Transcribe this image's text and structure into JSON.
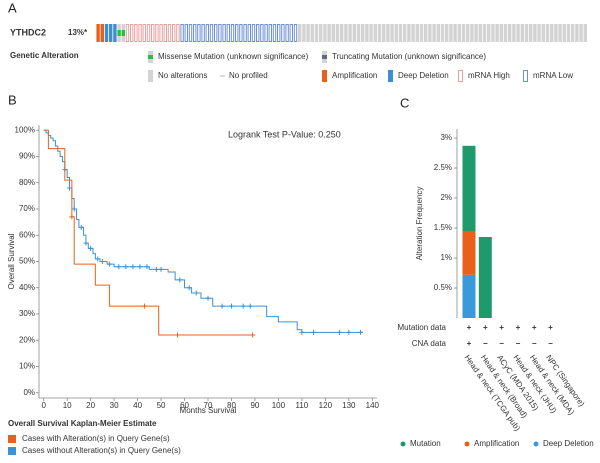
{
  "panel_labels": [
    "A",
    "B",
    "C"
  ],
  "oncoprint": {
    "gene": "YTHDC2",
    "frequency": "13%*",
    "legend_title": "Genetic Alteration",
    "legend": [
      {
        "label": "Missense Mutation (unknown significance)",
        "color": "#1fc33c"
      },
      {
        "label": "Truncating Mutation (unknown significance)",
        "color": "#5b6a82"
      },
      {
        "label": "No alterations",
        "color": "#d3d3d3"
      },
      {
        "label": "No profiled",
        "color": "#d3d3d3"
      },
      {
        "label": "Amplification",
        "color": "#e8601c"
      },
      {
        "label": "Deep Deletion",
        "color": "#3e8ed0"
      },
      {
        "label": "mRNA High",
        "color": "#e8a0a0"
      },
      {
        "label": "mRNA Low",
        "color": "#6d8fd8"
      }
    ],
    "samples": [
      {
        "alteration": "Amplification",
        "count": 2
      },
      {
        "alteration": "Deep Deletion",
        "count": 3
      },
      {
        "alteration": "Missense Mutation (unknown significance)",
        "count": 2
      },
      {
        "alteration": "mRNA High",
        "count": 13
      },
      {
        "alteration": "mRNA Low",
        "count": 28
      },
      {
        "alteration": "No alterations",
        "count": 69
      }
    ]
  },
  "chart_data": [
    {
      "type": "line",
      "title": "Overall Survival Kaplan-Meier Estimate",
      "annotation": "Logrank Test P-Value: 0.250",
      "x_label": "Months Survival",
      "y_label": "Overall Survival",
      "xlim": [
        -2,
        142
      ],
      "xticks": [
        0,
        10,
        20,
        30,
        40,
        50,
        60,
        70,
        80,
        90,
        100,
        110,
        120,
        130,
        140
      ],
      "ylim": [
        -2,
        102
      ],
      "yticks": [
        {
          "value": 0,
          "label": "0%"
        },
        {
          "value": 10,
          "label": "10%"
        },
        {
          "value": 20,
          "label": "20%"
        },
        {
          "value": 30,
          "label": "30%"
        },
        {
          "value": 40,
          "label": "40%"
        },
        {
          "value": 50,
          "label": "50%"
        },
        {
          "value": 60,
          "label": "60%"
        },
        {
          "value": 70,
          "label": "70%"
        },
        {
          "value": 80,
          "label": "80%"
        },
        {
          "value": 90,
          "label": "90%"
        },
        {
          "value": 100,
          "label": "100%"
        }
      ],
      "series": [
        {
          "name": "Cases with Alteration(s) in Query Gene(s)",
          "color": "#e8601c",
          "x": [
            0,
            2,
            2,
            9,
            9,
            12,
            12,
            13,
            13,
            22,
            22,
            28,
            28,
            49,
            49,
            89
          ],
          "values": [
            100,
            100,
            93,
            93,
            81,
            81,
            67,
            67,
            49,
            49,
            41,
            41,
            33,
            33,
            22,
            22
          ],
          "censored_x": [
            12,
            43,
            57,
            89
          ],
          "censored_values": [
            67,
            33,
            22,
            22
          ]
        },
        {
          "name": "Cases without Alteration(s) in Query Gene(s)",
          "color": "#3a92d6",
          "x": [
            0,
            1,
            1,
            2,
            2,
            3,
            3,
            4,
            4,
            5,
            5,
            6,
            6,
            7,
            7,
            8,
            8,
            9,
            9,
            10,
            10,
            11,
            11,
            12,
            12,
            13,
            13,
            14,
            14,
            15,
            15,
            17,
            17,
            18,
            18,
            19,
            19,
            21,
            21,
            22,
            22,
            24,
            24,
            27,
            27,
            30,
            30,
            45,
            45,
            53,
            53,
            56,
            56,
            60,
            60,
            63,
            63,
            67,
            67,
            72,
            72,
            95,
            95,
            100,
            100,
            108,
            108,
            110,
            110,
            136
          ],
          "values": [
            100,
            100,
            99,
            99,
            98,
            98,
            97,
            97,
            96,
            96,
            94,
            94,
            92,
            92,
            90,
            90,
            88,
            88,
            85,
            85,
            82,
            82,
            78,
            78,
            74,
            74,
            70,
            70,
            66,
            66,
            63,
            63,
            60,
            60,
            57,
            57,
            55,
            55,
            53,
            53,
            51,
            51,
            50,
            50,
            49,
            49,
            48,
            48,
            47,
            47,
            46,
            46,
            43,
            43,
            40,
            40,
            38,
            38,
            36,
            36,
            33,
            33,
            29,
            29,
            27,
            27,
            24,
            24,
            23,
            23
          ],
          "censored_x": [
            9,
            11,
            13,
            16,
            18,
            20,
            23,
            25,
            28,
            32,
            35,
            38,
            41,
            44,
            48,
            50,
            58,
            62,
            65,
            70,
            76,
            80,
            85,
            88,
            110,
            115,
            126,
            130,
            135
          ],
          "censored_values": [
            85,
            78,
            70,
            63,
            57,
            55,
            51,
            50,
            49,
            48,
            48,
            48,
            48,
            48,
            47,
            47,
            43,
            40,
            38,
            36,
            33,
            33,
            33,
            33,
            23,
            23,
            23,
            23,
            23
          ]
        }
      ]
    },
    {
      "type": "bar",
      "y_label": "Alteration Frequency",
      "categories": [
        "Head & neck (TCGA pub)",
        "Head & neck (Broad)",
        "ACyC (MDA 2015)",
        "Head & neck (JHU)",
        "Head & neck (MDA)",
        "NPC (Singapore)"
      ],
      "ylim": [
        0,
        3.15
      ],
      "yticks": [
        {
          "value": 0.5,
          "label": "0.5%"
        },
        {
          "value": 1,
          "label": "1%"
        },
        {
          "value": 1.5,
          "label": "1.5%"
        },
        {
          "value": 2,
          "label": "2%"
        },
        {
          "value": 2.5,
          "label": "2.5%"
        },
        {
          "value": 3,
          "label": "3%"
        }
      ],
      "series": [
        {
          "name": "Mutation",
          "color": "#1f9a6c",
          "values": [
            1.43,
            1.35,
            0,
            0,
            0,
            0
          ]
        },
        {
          "name": "Amplification",
          "color": "#e8601c",
          "values": [
            0.72,
            0,
            0,
            0,
            0,
            0
          ]
        },
        {
          "name": "Deep Deletion",
          "color": "#3a9ad9",
          "values": [
            0.72,
            0,
            0,
            0,
            0,
            0
          ]
        }
      ],
      "profile_rows": [
        {
          "label": "Mutation data",
          "values": [
            "+",
            "+",
            "+",
            "+",
            "+",
            "+"
          ]
        },
        {
          "label": "CNA data",
          "values": [
            "+",
            "−",
            "−",
            "−",
            "−",
            "−"
          ]
        }
      ]
    }
  ]
}
